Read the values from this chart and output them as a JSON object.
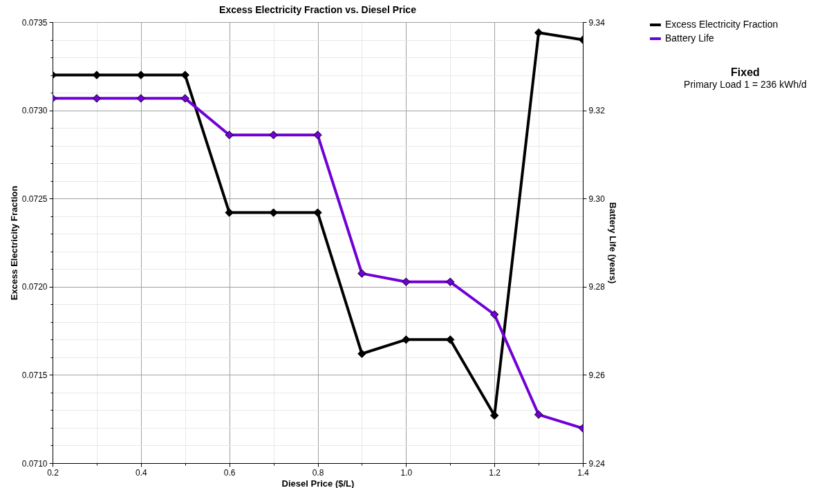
{
  "chart_data": {
    "type": "line",
    "title": "Excess Electricity Fraction vs. Diesel Price",
    "xlabel": "Diesel Price ($/L)",
    "ylabel": "Excess Electricity Fraction",
    "y2label": "Battery Life (years)",
    "x": [
      0.2,
      0.3,
      0.4,
      0.5,
      0.6,
      0.7,
      0.8,
      0.9,
      1.0,
      1.1,
      1.2,
      1.3,
      1.4
    ],
    "series": [
      {
        "name": "Excess Electricity Fraction",
        "color": "#000000",
        "values": [
          0.0732,
          0.0732,
          0.0732,
          0.0732,
          0.07242,
          0.07242,
          0.07242,
          0.07162,
          0.0717,
          0.0717,
          0.07127,
          0.07344,
          0.0734
        ]
      },
      {
        "name": "Battery Life",
        "color": "#7000d8",
        "axis": "y2",
        "values": [
          9.3227,
          9.3227,
          9.3227,
          9.3227,
          9.3144,
          9.3144,
          9.3144,
          9.283,
          9.2811,
          9.2811,
          9.2737,
          9.251,
          9.2479
        ]
      }
    ],
    "xlim": [
      0.2,
      1.4
    ],
    "xticks": [
      0.2,
      {
        "value": 0.3,
        "label": null
      },
      0.4,
      {
        "value": 0.5,
        "label": null
      },
      0.6,
      {
        "value": 0.7,
        "label": null
      },
      0.8,
      {
        "value": 0.9,
        "label": null
      },
      {
        "value": 1.0,
        "label": "1.0"
      },
      {
        "value": 1.1,
        "label": null
      },
      1.2,
      {
        "value": 1.3,
        "label": null
      },
      1.4
    ],
    "ylim": [
      0.071,
      0.0735
    ],
    "yticks": [
      {
        "value": 0.071,
        "label": "0.0710"
      },
      {
        "value": 0.0711,
        "label": null
      },
      {
        "value": 0.0712,
        "label": null
      },
      {
        "value": 0.0713,
        "label": null
      },
      {
        "value": 0.0714,
        "label": null
      },
      0.0715,
      {
        "value": 0.0716,
        "label": null
      },
      {
        "value": 0.0717,
        "label": null
      },
      {
        "value": 0.0718,
        "label": null
      },
      {
        "value": 0.0719,
        "label": null
      },
      {
        "value": 0.072,
        "label": "0.0720"
      },
      {
        "value": 0.0721,
        "label": null
      },
      {
        "value": 0.0722,
        "label": null
      },
      {
        "value": 0.0723,
        "label": null
      },
      {
        "value": 0.0724,
        "label": null
      },
      0.0725,
      {
        "value": 0.0726,
        "label": null
      },
      {
        "value": 0.0727,
        "label": null
      },
      {
        "value": 0.0728,
        "label": null
      },
      {
        "value": 0.0729,
        "label": null
      },
      {
        "value": 0.073,
        "label": "0.0730"
      },
      {
        "value": 0.0731,
        "label": null
      },
      {
        "value": 0.0732,
        "label": null
      },
      {
        "value": 0.0733,
        "label": null
      },
      {
        "value": 0.0734,
        "label": null
      },
      0.0735
    ],
    "y2lim": [
      9.24,
      9.34
    ],
    "y2ticks": [
      9.24,
      9.26,
      9.28,
      {
        "value": 9.3,
        "label": "9.30"
      },
      9.32,
      9.34
    ],
    "grid": true,
    "legend": "top right",
    "marker": "diamond",
    "line_style": "solid",
    "annotations": [
      "Fixed",
      "Primary Load 1 = 236 kWh/d"
    ]
  }
}
